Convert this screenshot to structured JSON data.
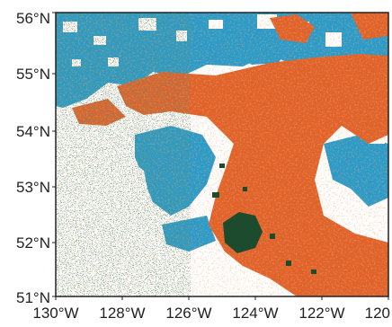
{
  "map": {
    "type": "raster-map",
    "extent": {
      "lon_min": -130,
      "lon_max": -120,
      "lat_min": 51,
      "lat_max": 56
    },
    "y_ticks": [
      "51°N",
      "52°N",
      "53°N",
      "54°N",
      "55°N",
      "56°N"
    ],
    "x_ticks": [
      "130°W",
      "128°W",
      "126°W",
      "124°W",
      "122°W",
      "120"
    ],
    "legend": "none",
    "colors": {
      "blue_class": "#2b9bc9",
      "orange_class": "#e0632b",
      "dark_green_class": "#1c4b2e",
      "background": "#ffffff",
      "frame": "#222222"
    }
  }
}
